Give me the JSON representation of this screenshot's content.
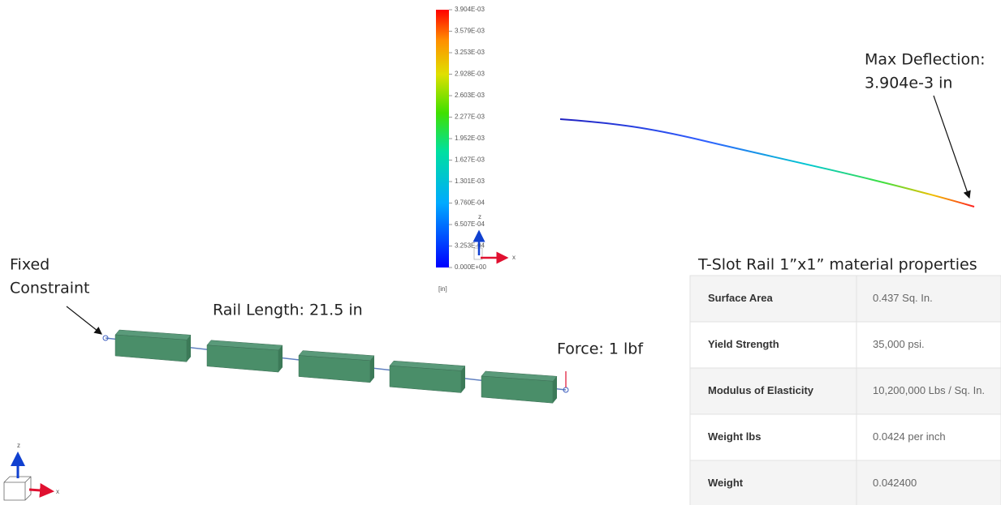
{
  "legend": {
    "labels": [
      "3.904E-03",
      "3.579E-03",
      "3.253E-03",
      "2.928E-03",
      "2.603E-03",
      "2.277E-03",
      "1.952E-03",
      "1.627E-03",
      "1.301E-03",
      "9.760E-04",
      "6.507E-04",
      "3.253E-04",
      "0.000E+00"
    ],
    "unit": "[in]"
  },
  "triad_top": {
    "z": "z",
    "x": "x"
  },
  "triad_bottom": {
    "z": "z",
    "x": "x"
  },
  "annotations": {
    "max_deflection": [
      "Max Deflection:",
      "3.904e-3 in"
    ],
    "fixed_constraint": [
      "Fixed",
      "Constraint"
    ],
    "rail_length": "Rail Length: 21.5 in",
    "force": "Force: 1 lbf"
  },
  "table": {
    "title": "T-Slot Rail 1”x1” material properties",
    "rows": [
      [
        "Surface Area",
        "0.437 Sq. In."
      ],
      [
        "Yield Strength",
        "35,000 psi."
      ],
      [
        "Modulus of Elasticity",
        "10,200,000 Lbs / Sq. In."
      ],
      [
        "Weight lbs",
        "0.0424 per inch"
      ],
      [
        "Weight",
        "0.042400"
      ]
    ]
  }
}
